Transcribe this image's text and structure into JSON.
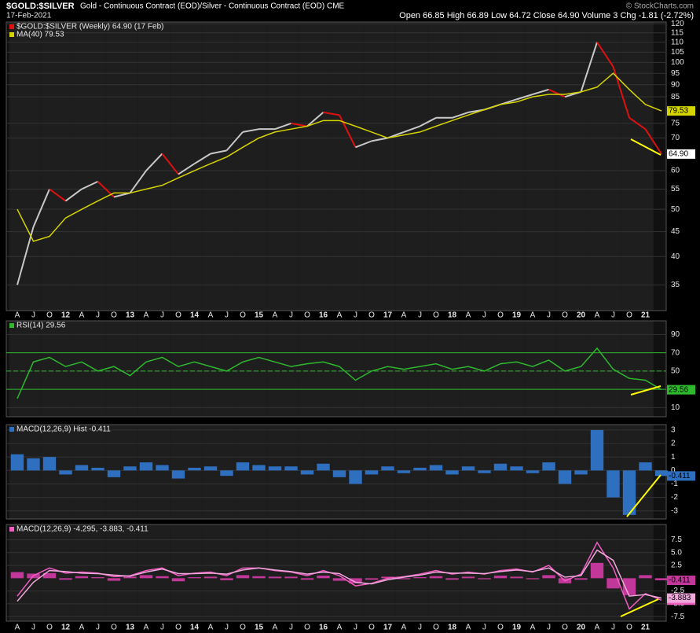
{
  "chart_data": [
    {
      "type": "line",
      "log": true,
      "title": "$GOLD:$SILVER",
      "subtitle": "Gold - Continuous Contract (EOD)/Silver - Continuous Contract (EOD) CME",
      "date": "17-Feb-2021",
      "watermark": "© StockCharts.com",
      "quote": "Open 66.85  High 66.89  Low 64.72  Close 64.90  Volume 3  Chg -1.81 (-2.72%)",
      "categories": [
        "A",
        "J",
        "O",
        "12",
        "A",
        "J",
        "O",
        "13",
        "A",
        "J",
        "O",
        "14",
        "A",
        "J",
        "O",
        "15",
        "A",
        "J",
        "O",
        "16",
        "A",
        "J",
        "O",
        "17",
        "A",
        "J",
        "O",
        "18",
        "A",
        "J",
        "O",
        "19",
        "A",
        "J",
        "O",
        "20",
        "A",
        "J",
        "O",
        "21",
        null
      ],
      "ylim": [
        31,
        121
      ],
      "yticks": [
        35,
        40,
        45,
        50,
        55,
        60,
        70,
        75,
        85,
        90,
        95,
        100,
        105,
        110,
        115,
        120
      ],
      "series": [
        {
          "name": "$GOLD:$SILVER (Weekly) 64.90 (17 Feb)",
          "up_color": "#c8c8c8",
          "color": "#e01010",
          "last_label": "64.90",
          "values": [
            35,
            46,
            55,
            52,
            55,
            57,
            53,
            54,
            60,
            65,
            59,
            62,
            65,
            66,
            72,
            73,
            73,
            75,
            74,
            79,
            78,
            67,
            69,
            70,
            72,
            74,
            77,
            77,
            79,
            80,
            82,
            84,
            86,
            88,
            85,
            87,
            110,
            98,
            77,
            73,
            64.9
          ]
        },
        {
          "name": "MA(40) 79.53",
          "color": "#d4d400",
          "last_label": "79.53",
          "values": [
            50,
            43,
            44,
            48,
            50,
            52,
            54,
            54,
            55,
            56,
            58,
            60,
            62,
            64,
            67,
            70,
            72,
            73,
            74,
            76,
            76,
            74,
            72,
            70,
            71,
            72,
            74,
            76,
            78,
            80,
            82,
            83,
            85,
            86,
            86,
            87,
            89,
            95,
            88,
            82,
            79.53
          ]
        }
      ]
    },
    {
      "type": "line",
      "ylim": [
        0,
        105
      ],
      "yticks": [
        10,
        30,
        50,
        70,
        90
      ],
      "reference_lines": [
        30,
        50,
        70
      ],
      "reference_color": "#2eb82e",
      "series": [
        {
          "name": "RSI(14) 29.56",
          "color": "#2eb82e",
          "last_label": "29.56",
          "values": [
            20,
            60,
            65,
            55,
            60,
            50,
            55,
            45,
            60,
            65,
            55,
            60,
            55,
            50,
            60,
            65,
            60,
            55,
            58,
            60,
            55,
            40,
            50,
            55,
            52,
            55,
            58,
            52,
            55,
            50,
            58,
            60,
            55,
            62,
            50,
            55,
            75,
            52,
            42,
            40,
            29.56
          ]
        }
      ]
    },
    {
      "type": "bar",
      "ylim": [
        -3.6,
        3.4
      ],
      "yticks": [
        -3,
        -2,
        -1,
        0,
        1,
        2,
        3
      ],
      "series": [
        {
          "name": "MACD(12,26,9) Hist -0.411",
          "color": "#2f6fbf",
          "last_label": "-0.411",
          "values": [
            1.2,
            0.9,
            1.0,
            -0.3,
            0.4,
            0.2,
            -0.5,
            0.3,
            0.6,
            0.4,
            -0.6,
            0.2,
            0.3,
            -0.4,
            0.6,
            0.4,
            0.3,
            0.3,
            -0.3,
            0.5,
            -0.5,
            -1.0,
            -0.3,
            0.3,
            -0.2,
            0.2,
            0.4,
            -0.3,
            0.3,
            -0.2,
            0.5,
            0.3,
            -0.2,
            0.6,
            -1.0,
            -0.3,
            3.0,
            -2.0,
            -3.3,
            0.6,
            -0.411
          ]
        }
      ]
    },
    {
      "type": "line",
      "ylim": [
        -8.4,
        10.5
      ],
      "yticks": [
        -7.5,
        {
          "value": -5,
          "label": "-5.0"
        },
        -2.5,
        2.5,
        {
          "value": 5,
          "label": "5.0"
        },
        7.5
      ],
      "legend": "MACD(12,26,9) -4.295, -3.883, -0.411",
      "series": [
        {
          "type": "bar",
          "color": "#c2389a",
          "last_label": "-0.411",
          "values": [
            1.2,
            0.9,
            1.0,
            -0.3,
            0.4,
            0.2,
            -0.5,
            0.3,
            0.6,
            0.4,
            -0.6,
            0.2,
            0.3,
            -0.4,
            0.6,
            0.4,
            0.3,
            0.3,
            -0.3,
            0.5,
            -0.5,
            -1.0,
            -0.3,
            0.3,
            -0.2,
            0.2,
            0.4,
            -0.3,
            0.3,
            -0.2,
            0.5,
            0.3,
            -0.2,
            0.6,
            -1.0,
            -0.3,
            3.0,
            -2.0,
            -3.3,
            0.6,
            -0.411
          ]
        },
        {
          "color": "#f05cc0",
          "last_label": "-4.295",
          "values": [
            -3.5,
            0.5,
            2.0,
            1.0,
            1.2,
            1.0,
            0.3,
            0.5,
            1.5,
            2.0,
            0.5,
            1.0,
            1.2,
            0.5,
            2.0,
            2.0,
            1.5,
            1.2,
            0.5,
            1.5,
            0.5,
            -1.5,
            -1.0,
            0,
            0.3,
            0.8,
            1.5,
            0.8,
            1.2,
            0.8,
            1.5,
            1.8,
            1.2,
            2.5,
            -0.5,
            0.8,
            7.0,
            2.0,
            -6.0,
            -3.0,
            -4.295
          ]
        },
        {
          "color": "#f0a8dc",
          "last_label": "-3.883",
          "values": [
            -4.5,
            -0.8,
            1.5,
            1.3,
            1.0,
            0.9,
            0.6,
            0.4,
            1.2,
            1.8,
            0.9,
            0.9,
            1.0,
            0.8,
            1.6,
            2.0,
            1.6,
            1.3,
            0.8,
            1.2,
            0.9,
            -0.8,
            -1.1,
            -0.3,
            0.2,
            0.6,
            1.2,
            1.0,
            1.0,
            0.9,
            1.3,
            1.6,
            1.3,
            2.0,
            0.2,
            0.5,
            5.5,
            3.5,
            -3.5,
            -3.2,
            -3.883
          ]
        }
      ]
    }
  ]
}
